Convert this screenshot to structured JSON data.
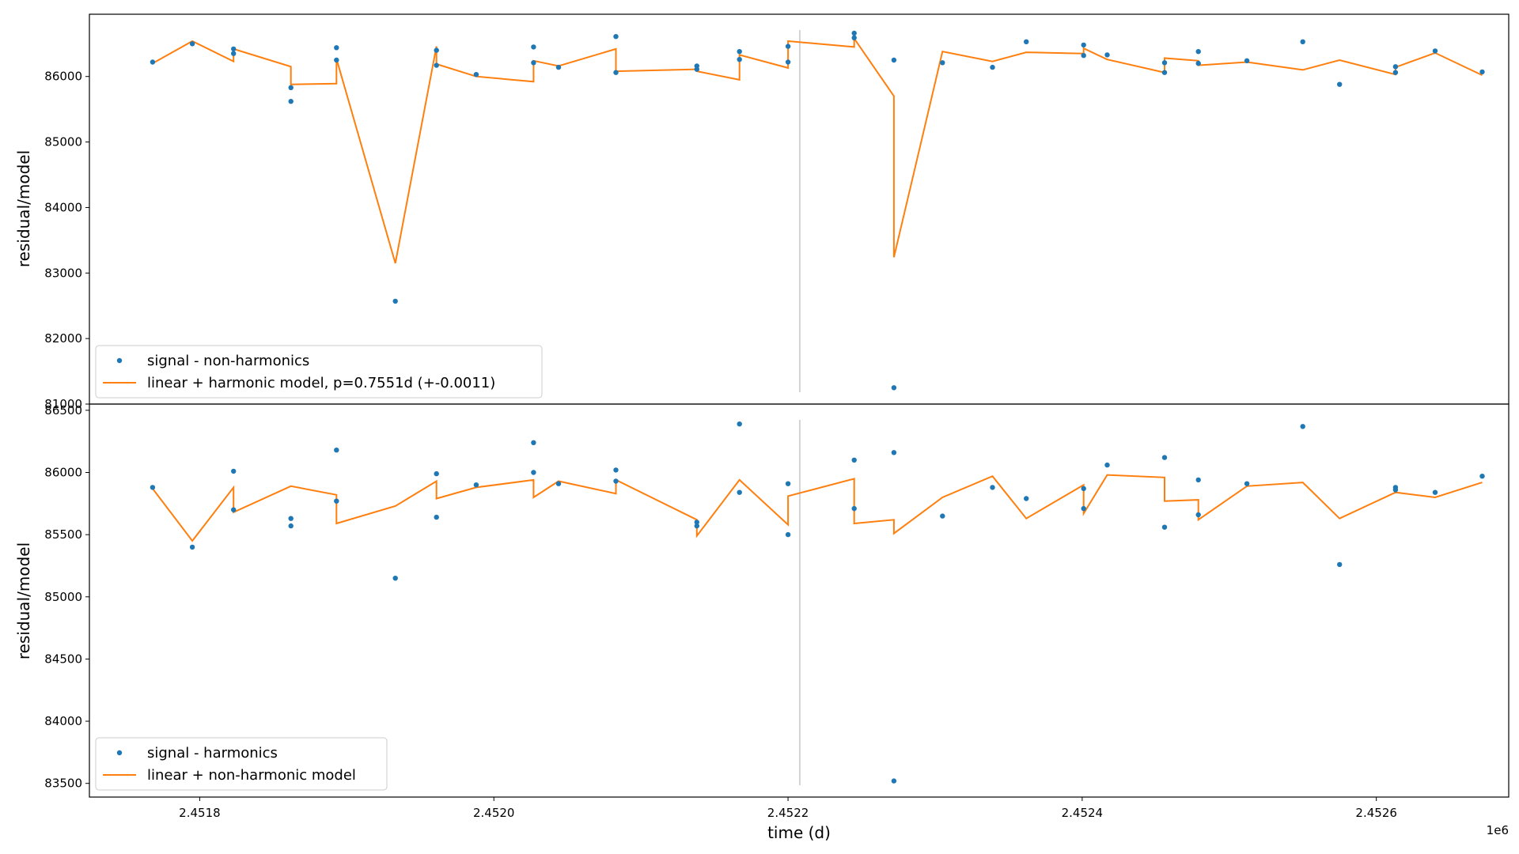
{
  "chart_data": [
    {
      "type": "scatter",
      "ylabel": "residual/model",
      "xlim": [
        2451725,
        2452690
      ],
      "ylim": [
        81000,
        86950
      ],
      "yticks": [
        81000,
        82000,
        83000,
        84000,
        85000,
        86000
      ],
      "yticklabels": [
        "81000",
        "82000",
        "83000",
        "84000",
        "85000",
        "86000"
      ],
      "legend_position": "lower-left",
      "vline_x": 2452208,
      "series": [
        {
          "name": "signal - non-harmonics",
          "kind": "scatter",
          "color": "#1f77b4",
          "points": [
            [
              2451768,
              86220
            ],
            [
              2451795,
              86500
            ],
            [
              2451823,
              86420
            ],
            [
              2451823,
              86350
            ],
            [
              2451862,
              85830
            ],
            [
              2451862,
              85620
            ],
            [
              2451893,
              86440
            ],
            [
              2451893,
              86250
            ],
            [
              2451933,
              82570
            ],
            [
              2451961,
              86400
            ],
            [
              2451961,
              86170
            ],
            [
              2451988,
              86030
            ],
            [
              2452027,
              86450
            ],
            [
              2452027,
              86210
            ],
            [
              2452044,
              86140
            ],
            [
              2452083,
              86610
            ],
            [
              2452083,
              86060
            ],
            [
              2452138,
              86160
            ],
            [
              2452138,
              86110
            ],
            [
              2452167,
              86380
            ],
            [
              2452167,
              86260
            ],
            [
              2452200,
              86460
            ],
            [
              2452200,
              86220
            ],
            [
              2452245,
              86660
            ],
            [
              2452245,
              86590
            ],
            [
              2452272,
              86250
            ],
            [
              2452272,
              81250
            ],
            [
              2452305,
              86210
            ],
            [
              2452339,
              86140
            ],
            [
              2452362,
              86530
            ],
            [
              2452401,
              86480
            ],
            [
              2452401,
              86320
            ],
            [
              2452417,
              86330
            ],
            [
              2452456,
              86210
            ],
            [
              2452456,
              86060
            ],
            [
              2452479,
              86380
            ],
            [
              2452479,
              86200
            ],
            [
              2452512,
              86240
            ],
            [
              2452550,
              86530
            ],
            [
              2452575,
              85880
            ],
            [
              2452613,
              86150
            ],
            [
              2452613,
              86060
            ],
            [
              2452640,
              86390
            ],
            [
              2452672,
              86070
            ]
          ]
        },
        {
          "name": "linear + harmonic model, p=0.7551d (+-0.0011)",
          "kind": "line",
          "color": "#ff7f0e",
          "points": [
            [
              2451768,
              86200
            ],
            [
              2451795,
              86540
            ],
            [
              2451823,
              86230
            ],
            [
              2451823,
              86420
            ],
            [
              2451862,
              86150
            ],
            [
              2451862,
              85880
            ],
            [
              2451893,
              85890
            ],
            [
              2451893,
              86270
            ],
            [
              2451933,
              83150
            ],
            [
              2451961,
              86460
            ],
            [
              2451961,
              86190
            ],
            [
              2451988,
              86000
            ],
            [
              2452027,
              85920
            ],
            [
              2452027,
              86240
            ],
            [
              2452044,
              86160
            ],
            [
              2452083,
              86420
            ],
            [
              2452083,
              86080
            ],
            [
              2452138,
              86110
            ],
            [
              2452138,
              86080
            ],
            [
              2452167,
              85950
            ],
            [
              2452167,
              86330
            ],
            [
              2452200,
              86130
            ],
            [
              2452200,
              86540
            ],
            [
              2452245,
              86450
            ],
            [
              2452245,
              86580
            ],
            [
              2452272,
              85700
            ],
            [
              2452272,
              83240
            ],
            [
              2452305,
              86380
            ],
            [
              2452339,
              86230
            ],
            [
              2452362,
              86370
            ],
            [
              2452401,
              86350
            ],
            [
              2452401,
              86430
            ],
            [
              2452417,
              86260
            ],
            [
              2452456,
              86060
            ],
            [
              2452456,
              86280
            ],
            [
              2452479,
              86240
            ],
            [
              2452479,
              86170
            ],
            [
              2452512,
              86220
            ],
            [
              2452550,
              86100
            ],
            [
              2452575,
              86250
            ],
            [
              2452613,
              86030
            ],
            [
              2452613,
              86140
            ],
            [
              2452640,
              86360
            ],
            [
              2452672,
              86020
            ]
          ]
        }
      ]
    },
    {
      "type": "scatter",
      "ylabel": "residual/model",
      "xlabel": "time (d)",
      "x_offset_label": "1e6",
      "xlim": [
        2451725,
        2452690
      ],
      "ylim": [
        83390,
        86550
      ],
      "xticks": [
        2451800,
        2452000,
        2452200,
        2452400,
        2452600
      ],
      "xticklabels": [
        "2.4518",
        "2.4520",
        "2.4522",
        "2.4524",
        "2.4526"
      ],
      "yticks": [
        83500,
        84000,
        84500,
        85000,
        85500,
        86000,
        86500
      ],
      "yticklabels": [
        "83500",
        "84000",
        "84500",
        "85000",
        "85500",
        "86000",
        "86500"
      ],
      "legend_position": "lower-left",
      "vline_x": 2452208,
      "series": [
        {
          "name": "signal - harmonics",
          "kind": "scatter",
          "color": "#1f77b4",
          "points": [
            [
              2451768,
              85880
            ],
            [
              2451795,
              85400
            ],
            [
              2451823,
              86010
            ],
            [
              2451823,
              85700
            ],
            [
              2451862,
              85630
            ],
            [
              2451862,
              85570
            ],
            [
              2451893,
              86180
            ],
            [
              2451893,
              85770
            ],
            [
              2451933,
              85150
            ],
            [
              2451961,
              85990
            ],
            [
              2451961,
              85640
            ],
            [
              2451988,
              85900
            ],
            [
              2452027,
              86240
            ],
            [
              2452027,
              86000
            ],
            [
              2452044,
              85910
            ],
            [
              2452083,
              86020
            ],
            [
              2452083,
              85930
            ],
            [
              2452138,
              85600
            ],
            [
              2452138,
              85570
            ],
            [
              2452167,
              86390
            ],
            [
              2452167,
              85840
            ],
            [
              2452200,
              85910
            ],
            [
              2452200,
              85500
            ],
            [
              2452245,
              86100
            ],
            [
              2452245,
              85710
            ],
            [
              2452272,
              86160
            ],
            [
              2452272,
              83520
            ],
            [
              2452305,
              85650
            ],
            [
              2452339,
              85880
            ],
            [
              2452362,
              85790
            ],
            [
              2452401,
              85870
            ],
            [
              2452401,
              85710
            ],
            [
              2452417,
              86060
            ],
            [
              2452456,
              86120
            ],
            [
              2452456,
              85560
            ],
            [
              2452479,
              85940
            ],
            [
              2452479,
              85660
            ],
            [
              2452512,
              85910
            ],
            [
              2452550,
              86370
            ],
            [
              2452575,
              85260
            ],
            [
              2452613,
              85880
            ],
            [
              2452613,
              85860
            ],
            [
              2452640,
              85840
            ],
            [
              2452672,
              85970
            ]
          ]
        },
        {
          "name": "linear + non-harmonic model",
          "kind": "line",
          "color": "#ff7f0e",
          "points": [
            [
              2451768,
              85870
            ],
            [
              2451795,
              85450
            ],
            [
              2451823,
              85880
            ],
            [
              2451823,
              85680
            ],
            [
              2451862,
              85890
            ],
            [
              2451893,
              85820
            ],
            [
              2451893,
              85590
            ],
            [
              2451933,
              85730
            ],
            [
              2451961,
              85930
            ],
            [
              2451961,
              85790
            ],
            [
              2451988,
              85880
            ],
            [
              2452027,
              85940
            ],
            [
              2452027,
              85800
            ],
            [
              2452044,
              85930
            ],
            [
              2452083,
              85830
            ],
            [
              2452083,
              85940
            ],
            [
              2452138,
              85620
            ],
            [
              2452138,
              85490
            ],
            [
              2452167,
              85940
            ],
            [
              2452200,
              85580
            ],
            [
              2452200,
              85810
            ],
            [
              2452245,
              85950
            ],
            [
              2452245,
              85590
            ],
            [
              2452272,
              85620
            ],
            [
              2452272,
              85510
            ],
            [
              2452305,
              85800
            ],
            [
              2452339,
              85970
            ],
            [
              2452362,
              85630
            ],
            [
              2452401,
              85900
            ],
            [
              2452401,
              85670
            ],
            [
              2452417,
              85980
            ],
            [
              2452456,
              85960
            ],
            [
              2452456,
              85770
            ],
            [
              2452479,
              85780
            ],
            [
              2452479,
              85620
            ],
            [
              2452512,
              85890
            ],
            [
              2452550,
              85920
            ],
            [
              2452575,
              85630
            ],
            [
              2452613,
              85840
            ],
            [
              2452640,
              85800
            ],
            [
              2452672,
              85920
            ]
          ]
        }
      ]
    }
  ]
}
